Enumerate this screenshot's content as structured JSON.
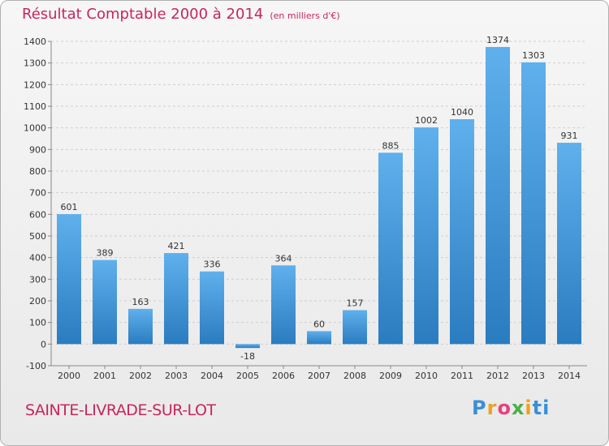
{
  "header": {
    "title": "Résultat Comptable 2000 à 2014",
    "unit_note": "(en milliers d'€)"
  },
  "footer": {
    "place": "SAINTE-LIVRADE-SUR-LOT",
    "logo_text": "Proxiti",
    "logo_letters": [
      "P",
      "r",
      "o",
      "x",
      "i",
      "ti"
    ]
  },
  "colors": {
    "title": "#c8255c",
    "bar_top": "#5fb0ec",
    "bar_bottom": "#2a7cc0"
  },
  "chart_data": {
    "type": "bar",
    "title": "Résultat Comptable 2000 à 2014",
    "xlabel": "",
    "ylabel": "",
    "categories": [
      "2000",
      "2001",
      "2002",
      "2003",
      "2004",
      "2005",
      "2006",
      "2007",
      "2008",
      "2009",
      "2010",
      "2011",
      "2012",
      "2013",
      "2014"
    ],
    "values": [
      601,
      389,
      163,
      421,
      336,
      -18,
      364,
      60,
      157,
      885,
      1002,
      1040,
      1374,
      1303,
      931
    ],
    "ylim": [
      -100,
      1400
    ],
    "yticks": [
      -100,
      0,
      100,
      200,
      300,
      400,
      500,
      600,
      700,
      800,
      900,
      1000,
      1100,
      1200,
      1300,
      1400
    ],
    "grid": true,
    "data_labels": true
  }
}
